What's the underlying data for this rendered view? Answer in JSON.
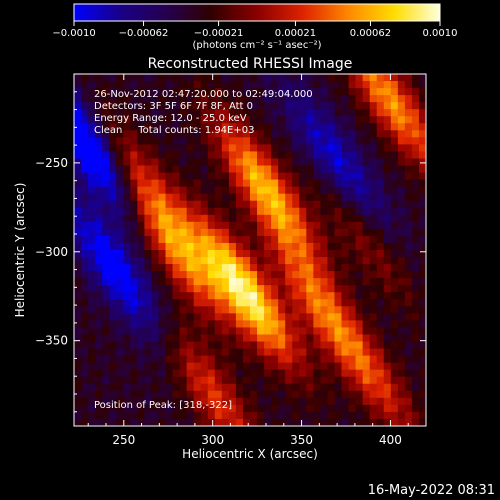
{
  "chart_data": {
    "type": "heatmap",
    "title": "Reconstructed RHESSI Image",
    "xlabel": "Heliocentric X (arcsec)",
    "ylabel": "Heliocentric Y (arcsec)",
    "xlim": [
      222,
      420
    ],
    "ylim": [
      -398,
      -200
    ],
    "x_ticks": [
      250,
      300,
      350,
      400
    ],
    "y_ticks": [
      -250,
      -300,
      -350
    ],
    "grid": false,
    "colorbar": {
      "range": [
        -0.001,
        0.001
      ],
      "tick_labels": [
        "-0.0010",
        "-0.00062",
        "-0.00021",
        "0.00021",
        "0.00062",
        "0.0010"
      ],
      "tick_values": [
        -0.001,
        -0.00062,
        -0.00021,
        0.00021,
        0.00062,
        0.001
      ],
      "unit_label": "(photons cm⁻² s⁻¹ asec⁻²)",
      "colors": [
        "#0000ff",
        "#1a0088",
        "#240050",
        "#300000",
        "#8a0000",
        "#dd2200",
        "#ff8800",
        "#ffdd00",
        "#ffffdd"
      ]
    },
    "annotations": [
      "26-Nov-2012 02:47:20.000 to 02:49:04.000",
      "Detectors: 3F 5F 6F 7F 8F, Att 0",
      "Energy Range: 12.0 - 25.0 keV",
      "Clean     Total counts: 1.94E+03"
    ],
    "peak_label": "Position of Peak: [318,-322]",
    "peak_x": 318,
    "peak_y": -322,
    "stripes": [
      {
        "x": 230,
        "y": -240,
        "value": -0.0008
      },
      {
        "x": 260,
        "y": -260,
        "value": 0.0004
      },
      {
        "x": 280,
        "y": -300,
        "value": 0.0006
      },
      {
        "x": 318,
        "y": -322,
        "value": 0.001
      },
      {
        "x": 330,
        "y": -265,
        "value": 0.0008
      },
      {
        "x": 360,
        "y": -330,
        "value": 0.0005
      },
      {
        "x": 385,
        "y": -290,
        "value": 0.0003
      },
      {
        "x": 400,
        "y": -215,
        "value": 0.0007
      },
      {
        "x": 300,
        "y": -380,
        "value": 0.0005
      },
      {
        "x": 390,
        "y": -370,
        "value": 0.0004
      },
      {
        "x": 245,
        "y": -310,
        "value": -0.0006
      },
      {
        "x": 370,
        "y": -250,
        "value": -0.0005
      }
    ]
  },
  "footer": {
    "timestamp": "16-May-2022 08:31"
  }
}
